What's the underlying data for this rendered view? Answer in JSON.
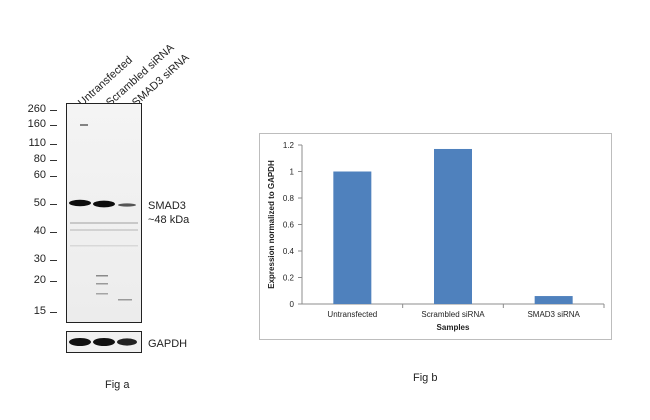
{
  "fig_a": {
    "lanes": [
      "Untransfected",
      "Scrambled siRNA",
      "SMAD3 siRNA"
    ],
    "mw_markers": [
      "260",
      "160",
      "110",
      "80",
      "60",
      "50",
      "40",
      "30",
      "20",
      "15"
    ],
    "target_label": "SMAD3",
    "target_size": "~48 kDa",
    "loading_control": "GAPDH",
    "caption": "Fig a"
  },
  "fig_b": {
    "caption": "Fig b"
  },
  "chart_data": {
    "type": "bar",
    "categories": [
      "Untransfected",
      "Scrambled siRNA",
      "SMAD3 siRNA"
    ],
    "values": [
      1.0,
      1.17,
      0.06
    ],
    "xlabel": "Samples",
    "ylabel": "Expression normalized to GAPDH",
    "ylim": [
      0,
      1.2
    ],
    "yticks": [
      "0",
      "0.2",
      "0.4",
      "0.6",
      "0.8",
      "1",
      "1.2"
    ],
    "bar_color": "#4f81bd",
    "grid": false
  }
}
